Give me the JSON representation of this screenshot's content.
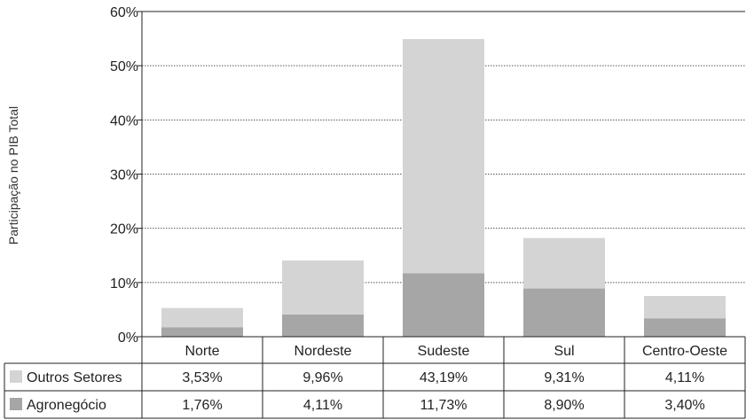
{
  "chart_data": {
    "type": "bar",
    "stacked": true,
    "ylabel": "Participação no PIB Total",
    "ylim": [
      0,
      60
    ],
    "yticks": [
      "0%",
      "10%",
      "20%",
      "30%",
      "40%",
      "50%",
      "60%"
    ],
    "grid": "horizontal dotted",
    "categories": [
      "Norte",
      "Nordeste",
      "Sudeste",
      "Sul",
      "Centro-Oeste"
    ],
    "series": [
      {
        "name": "Agronegócio",
        "color": "#a6a6a6",
        "values": [
          1.76,
          4.11,
          11.73,
          8.9,
          3.4
        ],
        "labels": [
          "1,76%",
          "4,11%",
          "11,73%",
          "8,90%",
          "3,40%"
        ]
      },
      {
        "name": "Outros Setores",
        "color": "#d4d4d4",
        "values": [
          3.53,
          9.96,
          43.19,
          9.31,
          4.11
        ],
        "labels": [
          "3,53%",
          "9,96%",
          "43,19%",
          "9,31%",
          "4,11%"
        ]
      }
    ],
    "table_row_order": [
      "Outros Setores",
      "Agronegócio"
    ]
  }
}
